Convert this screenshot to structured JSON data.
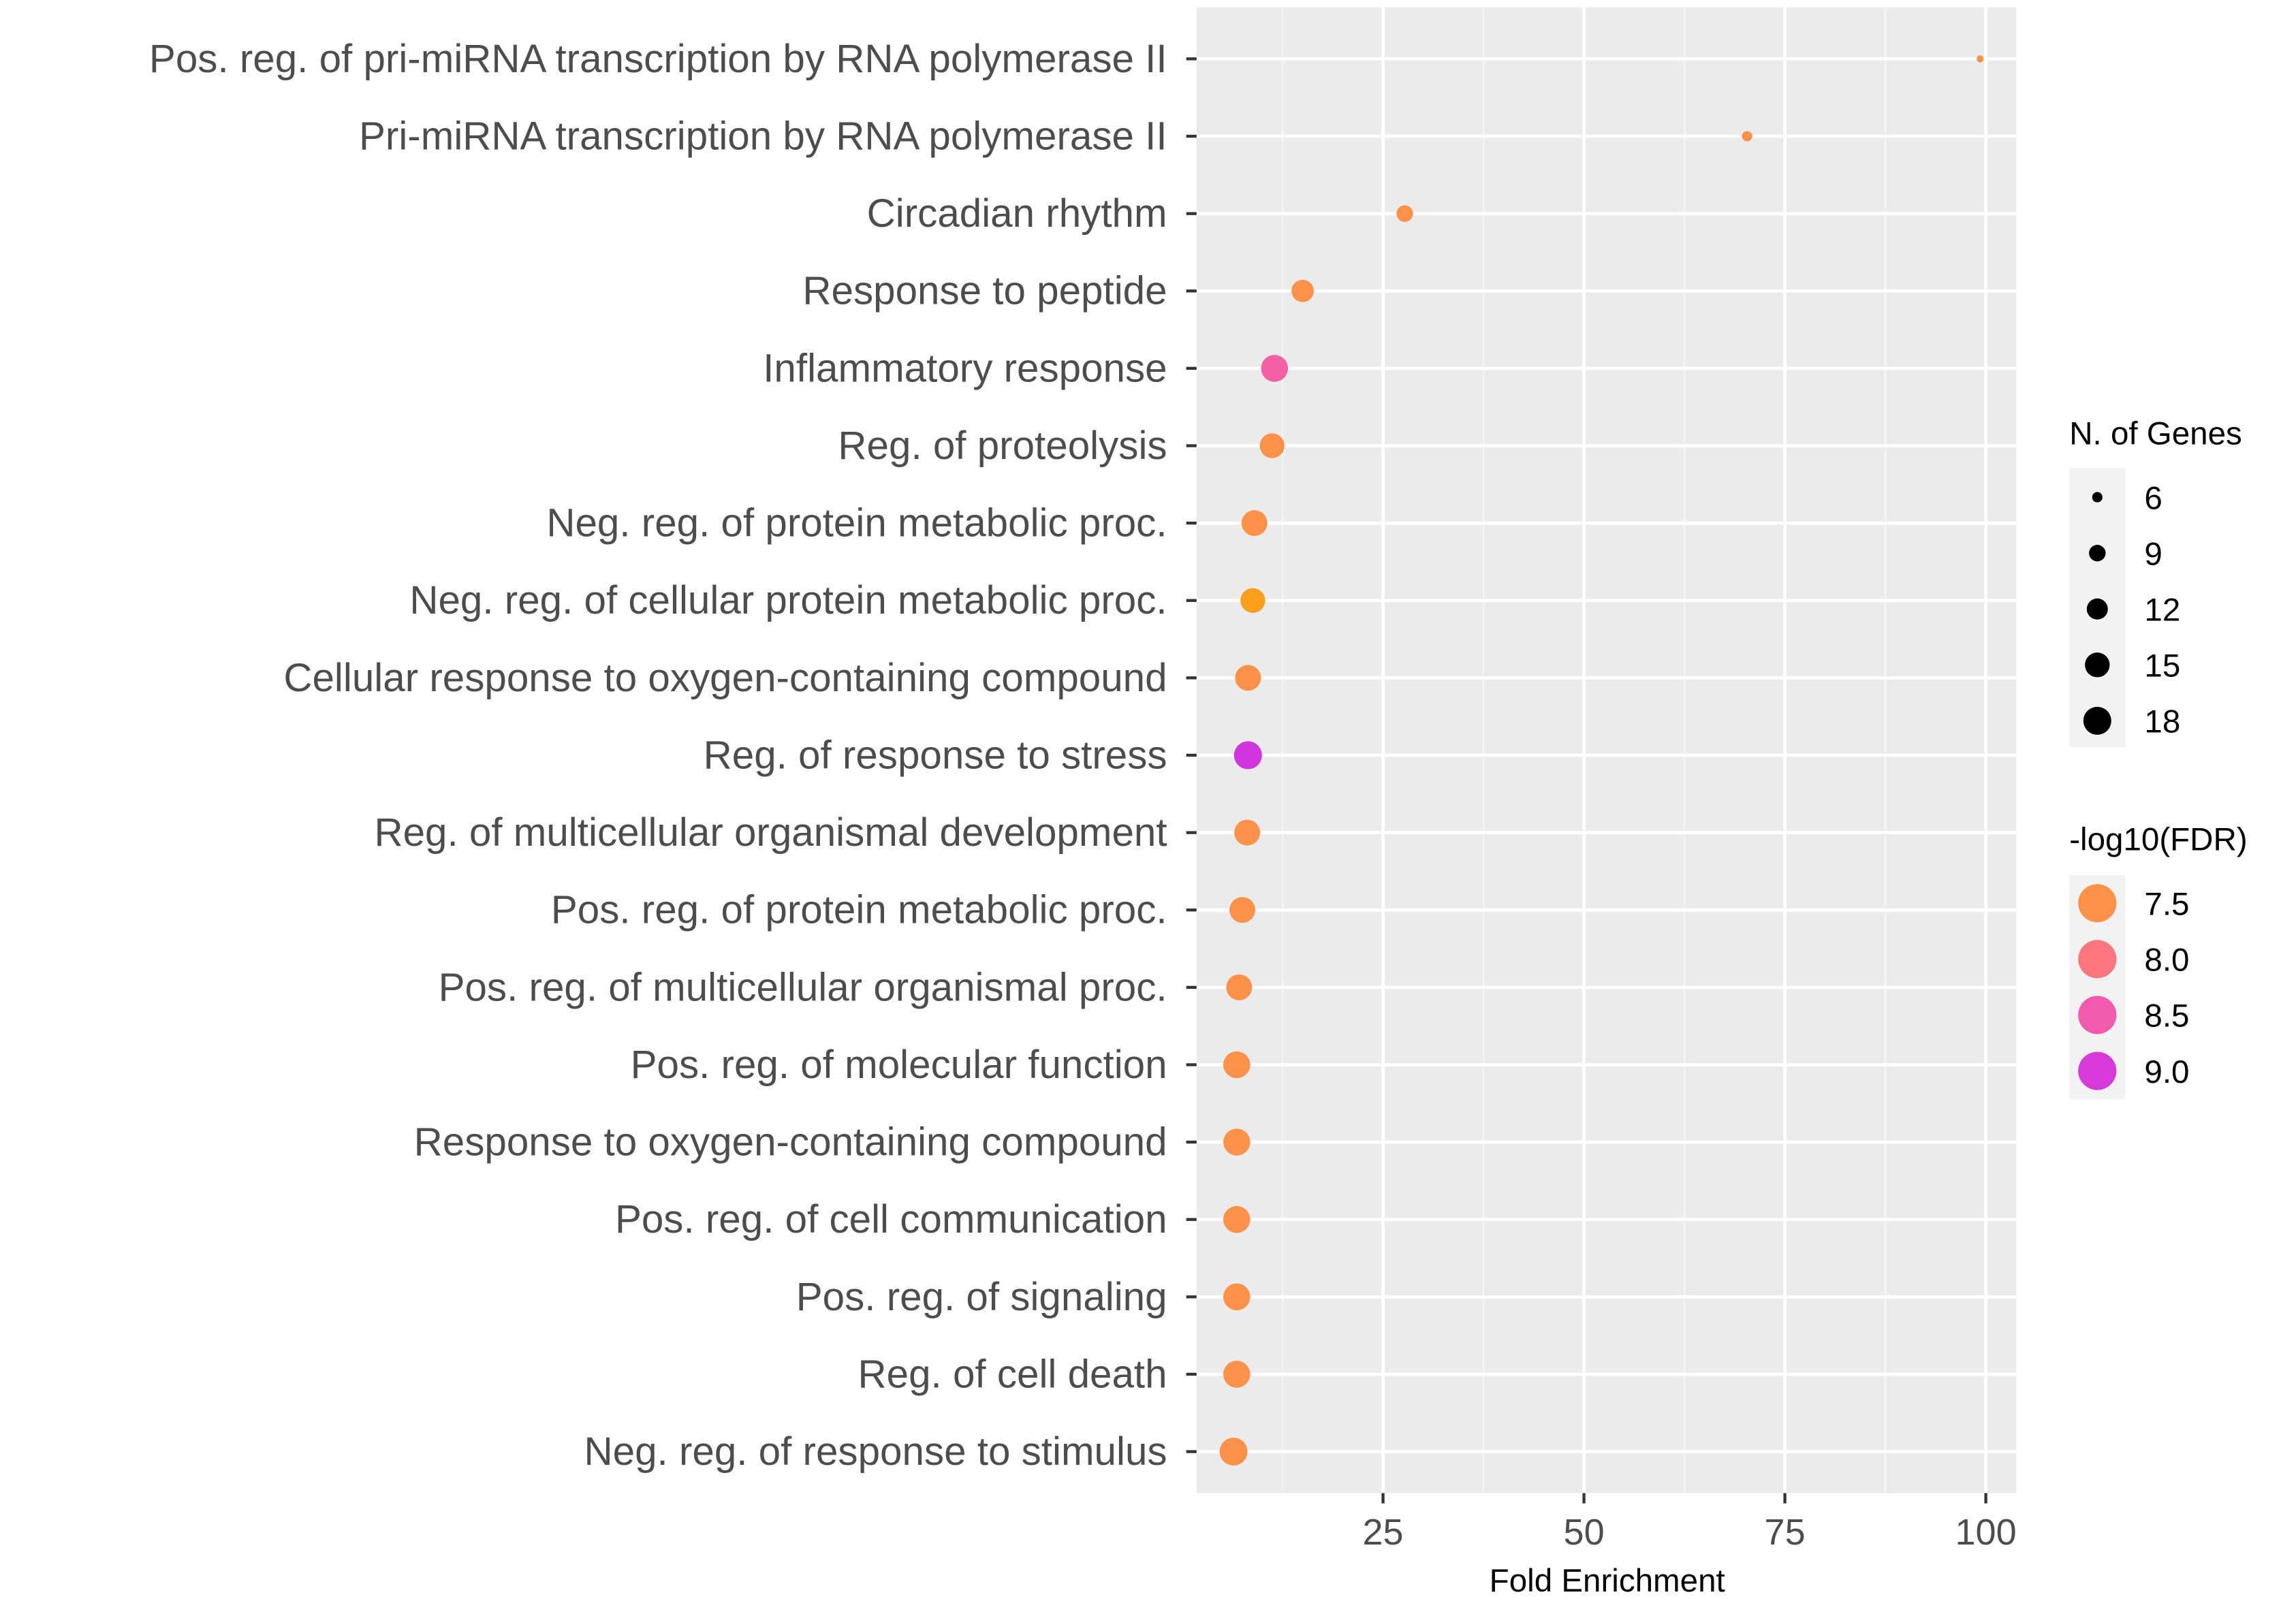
{
  "chart_data": {
    "type": "scatter",
    "xlabel": "Fold Enrichment",
    "ylabel": "",
    "xlim": [
      1.8,
      103.8
    ],
    "xticks": [
      25,
      50,
      75,
      100
    ],
    "grid": true,
    "legend_position": "right",
    "categories": [
      "Pos. reg. of pri-miRNA transcription by RNA polymerase II",
      "Pri-miRNA transcription by RNA polymerase II",
      "Circadian rhythm",
      "Response to peptide",
      "Inflammatory response",
      "Reg. of proteolysis",
      "Neg. reg. of protein metabolic proc.",
      "Neg. reg. of cellular protein metabolic proc.",
      "Cellular response to oxygen-containing compound",
      "Reg. of response to stress",
      "Reg. of multicellular organismal development",
      "Pos. reg. of protein metabolic proc.",
      "Pos. reg. of multicellular organismal proc.",
      "Pos. reg. of molecular function",
      "Response to oxygen-containing compound",
      "Pos. reg. of cell communication",
      "Pos. reg. of signaling",
      "Reg. of cell death",
      "Neg. reg. of response to stimulus"
    ],
    "fold_enrichment": [
      99.3,
      70.3,
      27.7,
      15.0,
      11.5,
      11.2,
      9.0,
      8.8,
      8.2,
      8.2,
      8.1,
      7.5,
      7.1,
      6.8,
      6.8,
      6.8,
      6.8,
      6.8,
      6.4
    ],
    "n_genes": [
      5,
      6,
      9,
      13,
      17,
      15,
      16,
      15,
      16,
      18,
      16,
      16,
      16,
      17,
      17,
      17,
      17,
      17,
      18
    ],
    "neg_log10_fdr": [
      7.5,
      7.5,
      7.5,
      7.5,
      8.4,
      7.5,
      7.5,
      7.2,
      7.5,
      9.2,
      7.5,
      7.5,
      7.5,
      7.5,
      7.5,
      7.5,
      7.5,
      7.5,
      7.5
    ],
    "size_legend": {
      "title": "N. of Genes",
      "values": [
        6,
        9,
        12,
        15,
        18
      ],
      "labels": [
        "6",
        "9",
        "12",
        "15",
        "18"
      ]
    },
    "color_legend": {
      "title": "-log10(FDR)",
      "values": [
        7.5,
        8.0,
        8.5,
        9.0
      ],
      "labels": [
        "7.5",
        "8.0",
        "8.5",
        "9.0"
      ],
      "colors": [
        "#FF924A",
        "#FF7580",
        "#F35AAE",
        "#D63AD9"
      ]
    },
    "low_color": "#FFA500",
    "high_color": "#C92EE8"
  }
}
